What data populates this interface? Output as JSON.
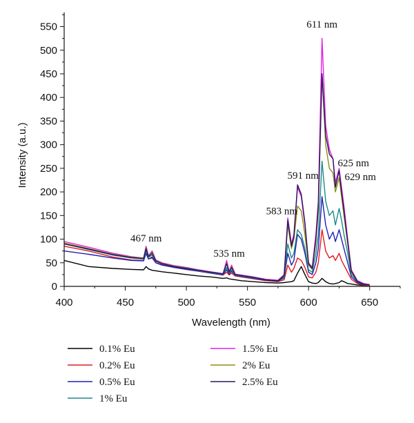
{
  "chart_data": {
    "type": "line",
    "title": "",
    "xlabel": "Wavelength (nm)",
    "ylabel": "Intensity (a.u.)",
    "xlim": [
      400,
      675
    ],
    "ylim": [
      0,
      580
    ],
    "x_ticks": [
      400,
      450,
      500,
      550,
      600,
      650
    ],
    "y_ticks": [
      0,
      50,
      100,
      150,
      200,
      250,
      300,
      350,
      400,
      450,
      500,
      550
    ],
    "grid": false,
    "legend_position": "bottom",
    "x": [
      400,
      420,
      440,
      455,
      465,
      467,
      469,
      472,
      475,
      480,
      490,
      500,
      510,
      520,
      530,
      533,
      535,
      537,
      540,
      545,
      555,
      565,
      575,
      580,
      583,
      586,
      588,
      591,
      594,
      597,
      600,
      603,
      606,
      608,
      611,
      614,
      617,
      620,
      622,
      625,
      627,
      629,
      632,
      635,
      640,
      645,
      650
    ],
    "series": [
      {
        "name": "0.1% Eu",
        "color": "#000000",
        "values": [
          55,
          42,
          38,
          36,
          35,
          42,
          37,
          34,
          33,
          31,
          28,
          25,
          22,
          20,
          17,
          18,
          16,
          15,
          14,
          12,
          10,
          8,
          7,
          8,
          9,
          10,
          12,
          28,
          42,
          25,
          10,
          7,
          6,
          8,
          17,
          10,
          6,
          5,
          6,
          8,
          12,
          10,
          6,
          5,
          3,
          2,
          2
        ]
      },
      {
        "name": "0.2% Eu",
        "color": "#e41a1c",
        "values": [
          85,
          75,
          62,
          56,
          55,
          70,
          58,
          60,
          50,
          46,
          40,
          36,
          32,
          28,
          24,
          30,
          24,
          28,
          22,
          20,
          16,
          12,
          10,
          14,
          45,
          30,
          38,
          60,
          55,
          40,
          20,
          18,
          30,
          50,
          120,
          75,
          60,
          65,
          55,
          70,
          55,
          45,
          30,
          15,
          6,
          3,
          2
        ]
      },
      {
        "name": "0.5% Eu",
        "color": "#1f1fb4",
        "values": [
          75,
          68,
          60,
          55,
          54,
          70,
          58,
          62,
          50,
          45,
          40,
          36,
          32,
          28,
          24,
          35,
          26,
          32,
          23,
          21,
          17,
          13,
          11,
          18,
          70,
          45,
          55,
          110,
          100,
          70,
          30,
          25,
          50,
          80,
          190,
          130,
          100,
          115,
          95,
          120,
          100,
          80,
          50,
          20,
          8,
          4,
          3
        ]
      },
      {
        "name": "1% Eu",
        "color": "#1a8a8a",
        "values": [
          90,
          78,
          66,
          60,
          58,
          75,
          62,
          66,
          53,
          48,
          42,
          38,
          33,
          29,
          25,
          40,
          28,
          35,
          24,
          22,
          18,
          14,
          12,
          20,
          90,
          60,
          70,
          120,
          110,
          80,
          35,
          30,
          70,
          110,
          265,
          180,
          150,
          160,
          130,
          165,
          140,
          110,
          70,
          25,
          10,
          5,
          3
        ]
      },
      {
        "name": "1.5% Eu",
        "color": "#e020e0",
        "values": [
          95,
          83,
          70,
          63,
          60,
          85,
          65,
          75,
          56,
          50,
          44,
          40,
          35,
          31,
          27,
          55,
          32,
          45,
          26,
          24,
          20,
          15,
          13,
          25,
          145,
          90,
          110,
          210,
          190,
          130,
          50,
          40,
          110,
          180,
          525,
          340,
          290,
          270,
          220,
          250,
          210,
          170,
          100,
          35,
          12,
          6,
          4
        ]
      },
      {
        "name": "2% Eu",
        "color": "#8c8c10",
        "values": [
          92,
          80,
          68,
          62,
          60,
          82,
          64,
          72,
          55,
          49,
          43,
          39,
          34,
          30,
          26,
          50,
          30,
          42,
          25,
          23,
          19,
          14,
          12,
          24,
          130,
          80,
          100,
          170,
          160,
          110,
          45,
          36,
          95,
          160,
          450,
          300,
          250,
          240,
          200,
          230,
          190,
          150,
          90,
          30,
          11,
          5,
          3
        ]
      },
      {
        "name": "2.5% Eu",
        "color": "#2a1660",
        "values": [
          90,
          79,
          67,
          61,
          59,
          80,
          63,
          70,
          54,
          48,
          42,
          38,
          34,
          30,
          26,
          48,
          30,
          40,
          25,
          23,
          19,
          14,
          12,
          23,
          140,
          85,
          105,
          215,
          195,
          135,
          48,
          38,
          100,
          170,
          450,
          320,
          280,
          270,
          210,
          245,
          200,
          160,
          95,
          32,
          11,
          5,
          3
        ]
      }
    ],
    "annotations": [
      {
        "text": "467 nm",
        "x": 467,
        "y": 95
      },
      {
        "text": "535 nm",
        "x": 535,
        "y": 63
      },
      {
        "text": "583 nm",
        "x": 583,
        "y": 153
      },
      {
        "text": "591 nm",
        "x": 591,
        "y": 228
      },
      {
        "text": "611 nm",
        "x": 611,
        "y": 548
      },
      {
        "text": "625 nm",
        "x": 625,
        "y": 254
      },
      {
        "text": "629 nm",
        "x": 629,
        "y": 225
      }
    ]
  }
}
